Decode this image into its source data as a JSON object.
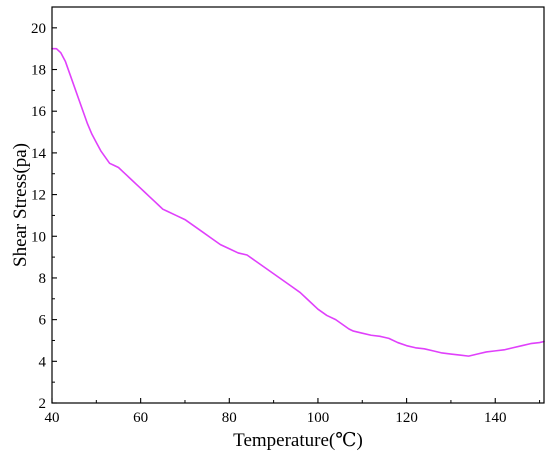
{
  "chart_data": {
    "type": "line",
    "title": "",
    "xlabel": "Temperature(℃)",
    "ylabel": "Shear Stress(pa)",
    "xlim": [
      40,
      151
    ],
    "ylim": [
      2,
      21
    ],
    "x_ticks": [
      "40",
      "60",
      "80",
      "100",
      "120",
      "140"
    ],
    "y_ticks": [
      "2",
      "4",
      "6",
      "8",
      "10",
      "12",
      "14",
      "16",
      "18",
      "20"
    ],
    "grid": false,
    "legend": "none",
    "line_color": "#e040fb",
    "series": [
      {
        "x": [
          40,
          41,
          42,
          43,
          44,
          45,
          46,
          47,
          48,
          49,
          50,
          51,
          52,
          53,
          54,
          55,
          56,
          57,
          58,
          59,
          60,
          61,
          62,
          63,
          64,
          65,
          66,
          68,
          70,
          72,
          74,
          76,
          78,
          80,
          82,
          84,
          86,
          88,
          90,
          92,
          94,
          96,
          98,
          100,
          102,
          104,
          106,
          107,
          108,
          110,
          112,
          114,
          116,
          118,
          120,
          122,
          124,
          126,
          128,
          130,
          132,
          134,
          136,
          138,
          140,
          142,
          144,
          146,
          148,
          150,
          151
        ],
        "values": [
          19.0,
          19.0,
          18.8,
          18.4,
          17.8,
          17.2,
          16.6,
          16.0,
          15.4,
          14.9,
          14.5,
          14.1,
          13.8,
          13.5,
          13.4,
          13.3,
          13.1,
          12.9,
          12.7,
          12.5,
          12.3,
          12.1,
          11.9,
          11.7,
          11.5,
          11.3,
          11.2,
          11.0,
          10.8,
          10.5,
          10.2,
          9.9,
          9.6,
          9.4,
          9.2,
          9.1,
          8.8,
          8.5,
          8.2,
          7.9,
          7.6,
          7.3,
          6.9,
          6.5,
          6.2,
          6.0,
          5.7,
          5.55,
          5.45,
          5.35,
          5.25,
          5.2,
          5.1,
          4.9,
          4.75,
          4.65,
          4.6,
          4.5,
          4.4,
          4.35,
          4.3,
          4.25,
          4.35,
          4.45,
          4.5,
          4.55,
          4.65,
          4.75,
          4.85,
          4.9,
          4.95
        ]
      }
    ]
  }
}
